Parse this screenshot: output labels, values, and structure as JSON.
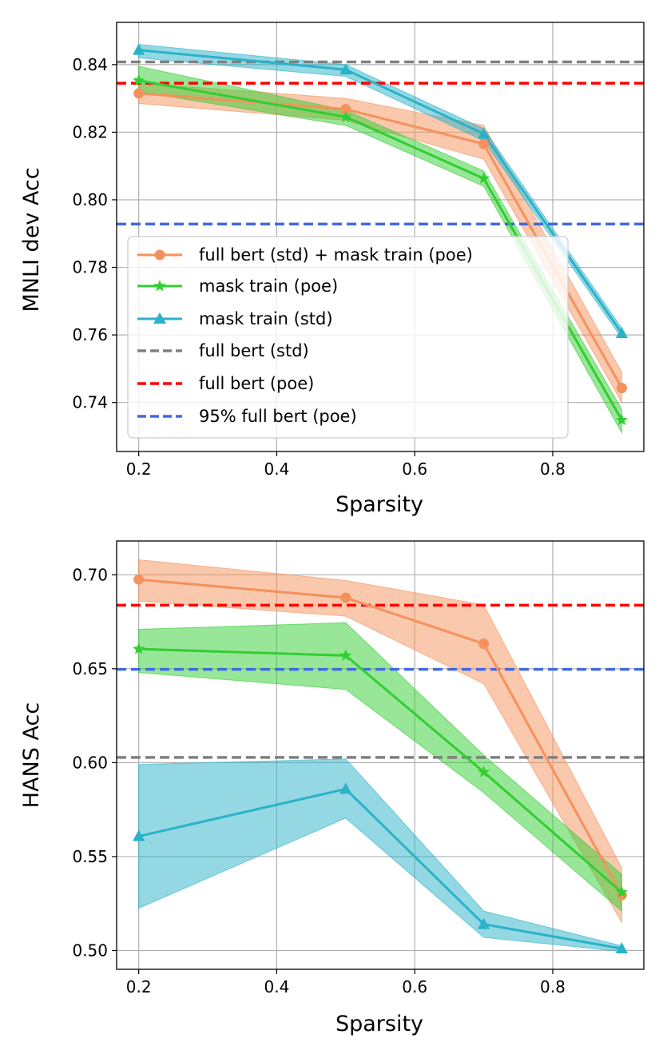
{
  "chart_data": [
    {
      "type": "line",
      "id": "mnli",
      "xlabel": "Sparsity",
      "ylabel": "MNLI dev Acc",
      "xlim": [
        0.168,
        0.932
      ],
      "ylim": [
        0.7255,
        0.8525
      ],
      "xticks": [
        {
          "value": 0.2,
          "label": "0.2"
        },
        {
          "value": 0.4,
          "label": "0.4"
        },
        {
          "value": 0.6,
          "label": "0.6"
        },
        {
          "value": 0.8,
          "label": "0.8"
        }
      ],
      "yticks": [
        {
          "value": 0.74,
          "label": "0.74"
        },
        {
          "value": 0.76,
          "label": "0.76"
        },
        {
          "value": 0.78,
          "label": "0.78"
        },
        {
          "value": 0.8,
          "label": "0.80"
        },
        {
          "value": 0.82,
          "label": "0.82"
        },
        {
          "value": 0.84,
          "label": "0.84"
        }
      ],
      "grid": true,
      "legend_position": "lower-left",
      "x": [
        0.2,
        0.5,
        0.7,
        0.9
      ],
      "series": [
        {
          "key": "full_mask_poe",
          "name": "full bert (std) + mask train (poe)",
          "color": "#f4915c",
          "marker": "circle",
          "values": [
            0.8315,
            0.8268,
            0.8165,
            0.7443
          ],
          "lower": [
            0.8285,
            0.8235,
            0.812,
            0.74
          ],
          "upper": [
            0.8345,
            0.83,
            0.822,
            0.749
          ]
        },
        {
          "key": "mask_poe",
          "name": "mask train (poe)",
          "color": "#32cd32",
          "marker": "star",
          "values": [
            0.8353,
            0.8245,
            0.8063,
            0.7348
          ],
          "lower": [
            0.832,
            0.822,
            0.804,
            0.731
          ],
          "upper": [
            0.8395,
            0.8265,
            0.8085,
            0.738
          ]
        },
        {
          "key": "mask_std",
          "name": "mask train (std)",
          "color": "#2ab2c8",
          "marker": "triangle",
          "values": [
            0.8443,
            0.8385,
            0.8195,
            0.7605
          ],
          "lower": [
            0.842,
            0.8365,
            0.8175,
            0.759
          ],
          "upper": [
            0.846,
            0.84,
            0.821,
            0.762
          ]
        }
      ],
      "hlines": [
        {
          "key": "full_std",
          "name": "full bert (std)",
          "color": "#808080",
          "value": 0.8408
        },
        {
          "key": "full_poe",
          "name": "full bert (poe)",
          "color": "#ff0000",
          "value": 0.8345
        },
        {
          "key": "pct95_poe",
          "name": "95% full bert (poe)",
          "color": "#4169e1",
          "value": 0.7928
        }
      ]
    },
    {
      "type": "line",
      "id": "hans",
      "xlabel": "Sparsity",
      "ylabel": "HANS Acc",
      "xlim": [
        0.168,
        0.932
      ],
      "ylim": [
        0.49,
        0.718
      ],
      "xticks": [
        {
          "value": 0.2,
          "label": "0.2"
        },
        {
          "value": 0.4,
          "label": "0.4"
        },
        {
          "value": 0.6,
          "label": "0.6"
        },
        {
          "value": 0.8,
          "label": "0.8"
        }
      ],
      "yticks": [
        {
          "value": 0.5,
          "label": "0.50"
        },
        {
          "value": 0.55,
          "label": "0.55"
        },
        {
          "value": 0.6,
          "label": "0.60"
        },
        {
          "value": 0.65,
          "label": "0.65"
        },
        {
          "value": 0.7,
          "label": "0.70"
        }
      ],
      "grid": true,
      "legend_position": "none",
      "x": [
        0.2,
        0.5,
        0.7,
        0.9
      ],
      "series": [
        {
          "key": "full_mask_poe",
          "name": "full bert (std) + mask train (poe)",
          "color": "#f4915c",
          "marker": "circle",
          "values": [
            0.6975,
            0.6878,
            0.6633,
            0.5295
          ],
          "lower": [
            0.686,
            0.678,
            0.642,
            0.515
          ],
          "upper": [
            0.708,
            0.697,
            0.684,
            0.544
          ]
        },
        {
          "key": "mask_poe",
          "name": "mask train (poe)",
          "color": "#32cd32",
          "marker": "star",
          "values": [
            0.6605,
            0.657,
            0.595,
            0.531
          ],
          "lower": [
            0.648,
            0.639,
            0.584,
            0.521
          ],
          "upper": [
            0.671,
            0.6745,
            0.604,
            0.5405
          ]
        },
        {
          "key": "mask_std",
          "name": "mask train (std)",
          "color": "#2ab2c8",
          "marker": "triangle",
          "values": [
            0.5608,
            0.586,
            0.514,
            0.501
          ],
          "lower": [
            0.5225,
            0.5705,
            0.507,
            0.4995
          ],
          "upper": [
            0.599,
            0.602,
            0.521,
            0.5025
          ]
        }
      ],
      "hlines": [
        {
          "key": "full_std",
          "name": "full bert (std)",
          "color": "#808080",
          "value": 0.6028
        },
        {
          "key": "full_poe",
          "name": "full bert (poe)",
          "color": "#ff0000",
          "value": 0.6838
        },
        {
          "key": "pct95_poe",
          "name": "95% full bert (poe)",
          "color": "#4169e1",
          "value": 0.6497
        }
      ]
    }
  ]
}
